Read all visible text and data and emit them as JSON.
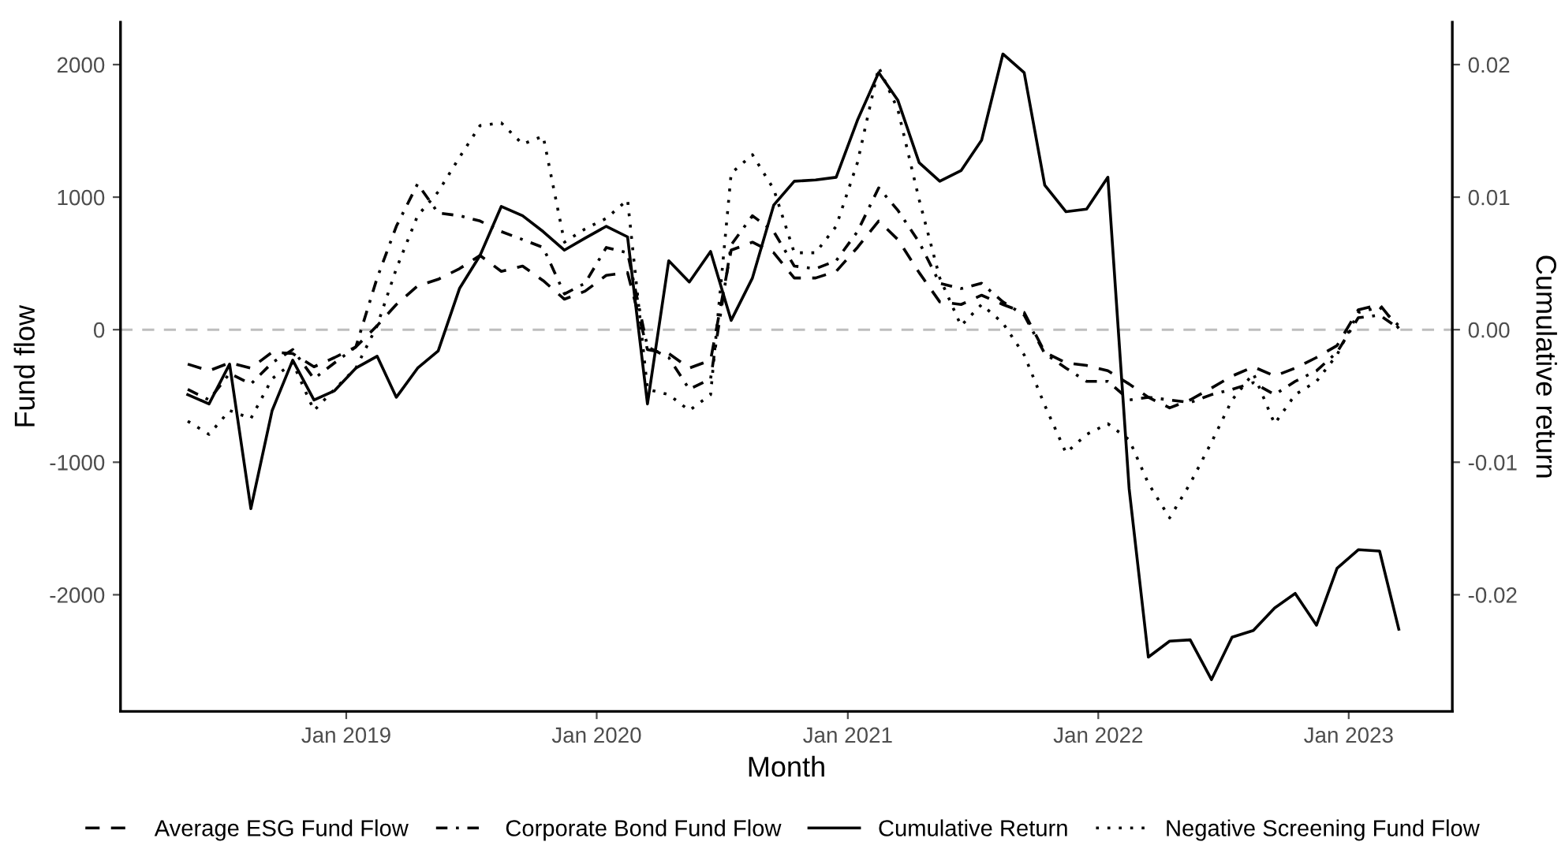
{
  "chart_data": {
    "type": "line",
    "xlabel": "Month",
    "ylabel": "Fund flow",
    "y2label": "Cumulative return",
    "x": [
      "2018-05-15",
      "2018-06-15",
      "2018-07-15",
      "2018-08-15",
      "2018-09-15",
      "2018-10-15",
      "2018-11-15",
      "2018-12-15",
      "2019-01-15",
      "2019-02-15",
      "2019-03-15",
      "2019-04-15",
      "2019-05-15",
      "2019-06-15",
      "2019-07-15",
      "2019-08-15",
      "2019-09-15",
      "2019-10-15",
      "2019-11-15",
      "2019-12-15",
      "2020-01-15",
      "2020-02-15",
      "2020-03-15",
      "2020-04-15",
      "2020-05-15",
      "2020-06-15",
      "2020-07-15",
      "2020-08-15",
      "2020-09-15",
      "2020-10-15",
      "2020-11-15",
      "2020-12-15",
      "2021-01-15",
      "2021-02-15",
      "2021-03-15",
      "2021-04-15",
      "2021-05-15",
      "2021-06-15",
      "2021-07-15",
      "2021-08-15",
      "2021-09-15",
      "2021-10-15",
      "2021-11-15",
      "2021-12-15",
      "2022-01-15",
      "2022-02-15",
      "2022-03-15",
      "2022-04-15",
      "2022-05-15",
      "2022-06-15",
      "2022-07-15",
      "2022-08-15",
      "2022-09-15",
      "2022-10-15",
      "2022-11-15",
      "2022-12-15",
      "2023-01-15",
      "2023-02-15",
      "2023-03-15"
    ],
    "series": [
      {
        "name": "Average ESG Fund Flow",
        "color": "#000000",
        "line_style": "dashed",
        "values": [
          -260,
          -310,
          -250,
          -290,
          -170,
          -180,
          -280,
          -210,
          -130,
          30,
          190,
          330,
          380,
          460,
          560,
          440,
          480,
          370,
          230,
          290,
          410,
          430,
          -150,
          -180,
          -290,
          -230,
          600,
          660,
          580,
          390,
          390,
          440,
          620,
          820,
          680,
          430,
          210,
          190,
          260,
          190,
          130,
          -170,
          -250,
          -270,
          -310,
          -410,
          -510,
          -590,
          -530,
          -440,
          -350,
          -280,
          -350,
          -290,
          -210,
          -120,
          150,
          190,
          10
        ]
      },
      {
        "name": "Corporate Bond Fund Flow",
        "color": "#000000",
        "line_style": "dashdot",
        "values": [
          -450,
          -530,
          -330,
          -410,
          -250,
          -150,
          -370,
          -250,
          -130,
          390,
          780,
          1100,
          880,
          860,
          820,
          740,
          680,
          620,
          270,
          350,
          620,
          580,
          -130,
          -210,
          -450,
          -370,
          640,
          860,
          740,
          480,
          460,
          520,
          740,
          1070,
          900,
          660,
          350,
          310,
          350,
          210,
          110,
          -180,
          -290,
          -390,
          -390,
          -530,
          -510,
          -530,
          -550,
          -490,
          -450,
          -400,
          -490,
          -390,
          -310,
          -170,
          90,
          110,
          10
        ]
      },
      {
        "name": "Cumulative Return",
        "color": "#000000",
        "line_style": "solid",
        "axis": "y2",
        "values": [
          -0.0049,
          -0.0056,
          -0.0026,
          -0.0135,
          -0.0061,
          -0.0023,
          -0.0053,
          -0.0046,
          -0.0029,
          -0.002,
          -0.0051,
          -0.0029,
          -0.0016,
          0.0031,
          0.0056,
          0.0093,
          0.0086,
          0.0074,
          0.006,
          0.0069,
          0.0078,
          0.007,
          -0.0056,
          0.0052,
          0.0036,
          0.0059,
          0.0007,
          0.0039,
          0.0094,
          0.0112,
          0.0113,
          0.0115,
          0.0158,
          0.0194,
          0.0173,
          0.0126,
          0.0112,
          0.012,
          0.0143,
          0.0208,
          0.0194,
          0.0109,
          0.0089,
          0.0091,
          0.0115,
          -0.012,
          -0.0247,
          -0.0235,
          -0.0234,
          -0.0264,
          -0.0232,
          -0.0227,
          -0.021,
          -0.0199,
          -0.0223,
          -0.018,
          -0.0166,
          -0.0167,
          -0.0226
        ]
      },
      {
        "name": "Negative Screening Fund Flow",
        "color": "#000000",
        "line_style": "dotted",
        "values": [
          -690,
          -790,
          -610,
          -670,
          -370,
          -250,
          -610,
          -450,
          -290,
          30,
          460,
          860,
          1040,
          1300,
          1540,
          1560,
          1400,
          1460,
          660,
          760,
          840,
          980,
          -450,
          -490,
          -610,
          -490,
          1180,
          1320,
          1060,
          580,
          580,
          780,
          1260,
          1980,
          1660,
          980,
          390,
          30,
          190,
          50,
          -190,
          -570,
          -930,
          -790,
          -710,
          -830,
          -1160,
          -1420,
          -1160,
          -850,
          -530,
          -330,
          -710,
          -490,
          -390,
          -190,
          130,
          170,
          30
        ]
      }
    ],
    "xlim": [
      "2018-02-06",
      "2023-06-01"
    ],
    "xticks": [
      {
        "value": "2019-01-01",
        "label": "Jan 2019"
      },
      {
        "value": "2020-01-01",
        "label": "Jan 2020"
      },
      {
        "value": "2021-01-01",
        "label": "Jan 2021"
      },
      {
        "value": "2022-01-01",
        "label": "Jan 2022"
      },
      {
        "value": "2023-01-01",
        "label": "Jan 2023"
      }
    ],
    "ylim": [
      -2880,
      2320
    ],
    "yticks": [
      -2000,
      -1000,
      0,
      1000,
      2000
    ],
    "y2lim": [
      -0.0288,
      0.0232
    ],
    "y2ticks": [
      -0.02,
      -0.01,
      {
        "value": 0,
        "label": "0.00"
      },
      0.01,
      0.02
    ],
    "ref_lines": [
      {
        "axis": "y",
        "value": 0,
        "color": "#bebebe",
        "line_style": "dashed"
      }
    ],
    "grid": false,
    "legend": "bottom",
    "marker": "none"
  }
}
